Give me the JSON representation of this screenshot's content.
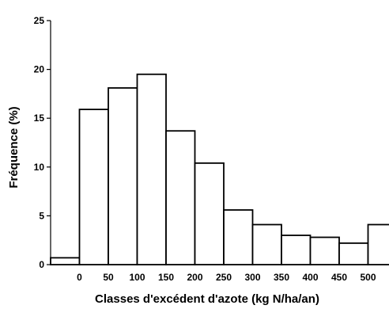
{
  "chart_data": {
    "type": "bar",
    "title": "",
    "xlabel": "Classes d'excédent d'azote (kg N/ha/an)",
    "ylabel": "Fréquence (%)",
    "x_tick_labels": [
      "0",
      "50",
      "100",
      "150",
      "200",
      "250",
      "300",
      "350",
      "400",
      "450",
      "500"
    ],
    "y_ticks": [
      "0",
      "5",
      "10",
      "15",
      "20",
      "25"
    ],
    "ylim": [
      0,
      25
    ],
    "bin_width": 50,
    "bins": [
      {
        "from": -50,
        "to": 0,
        "value": 0.7
      },
      {
        "from": 0,
        "to": 50,
        "value": 15.9
      },
      {
        "from": 50,
        "to": 100,
        "value": 18.1
      },
      {
        "from": 100,
        "to": 150,
        "value": 19.5
      },
      {
        "from": 150,
        "to": 200,
        "value": 13.7
      },
      {
        "from": 200,
        "to": 250,
        "value": 10.4
      },
      {
        "from": 250,
        "to": 300,
        "value": 5.6
      },
      {
        "from": 300,
        "to": 350,
        "value": 4.1
      },
      {
        "from": 350,
        "to": 400,
        "value": 3.0
      },
      {
        "from": 400,
        "to": 450,
        "value": 2.8
      },
      {
        "from": 450,
        "to": 500,
        "value": 2.2
      },
      {
        "from": 500,
        "to": 550,
        "value": 4.1
      }
    ],
    "grid": false,
    "legend": "none",
    "bar_fill": "#ffffff",
    "bar_stroke": "#000000"
  }
}
